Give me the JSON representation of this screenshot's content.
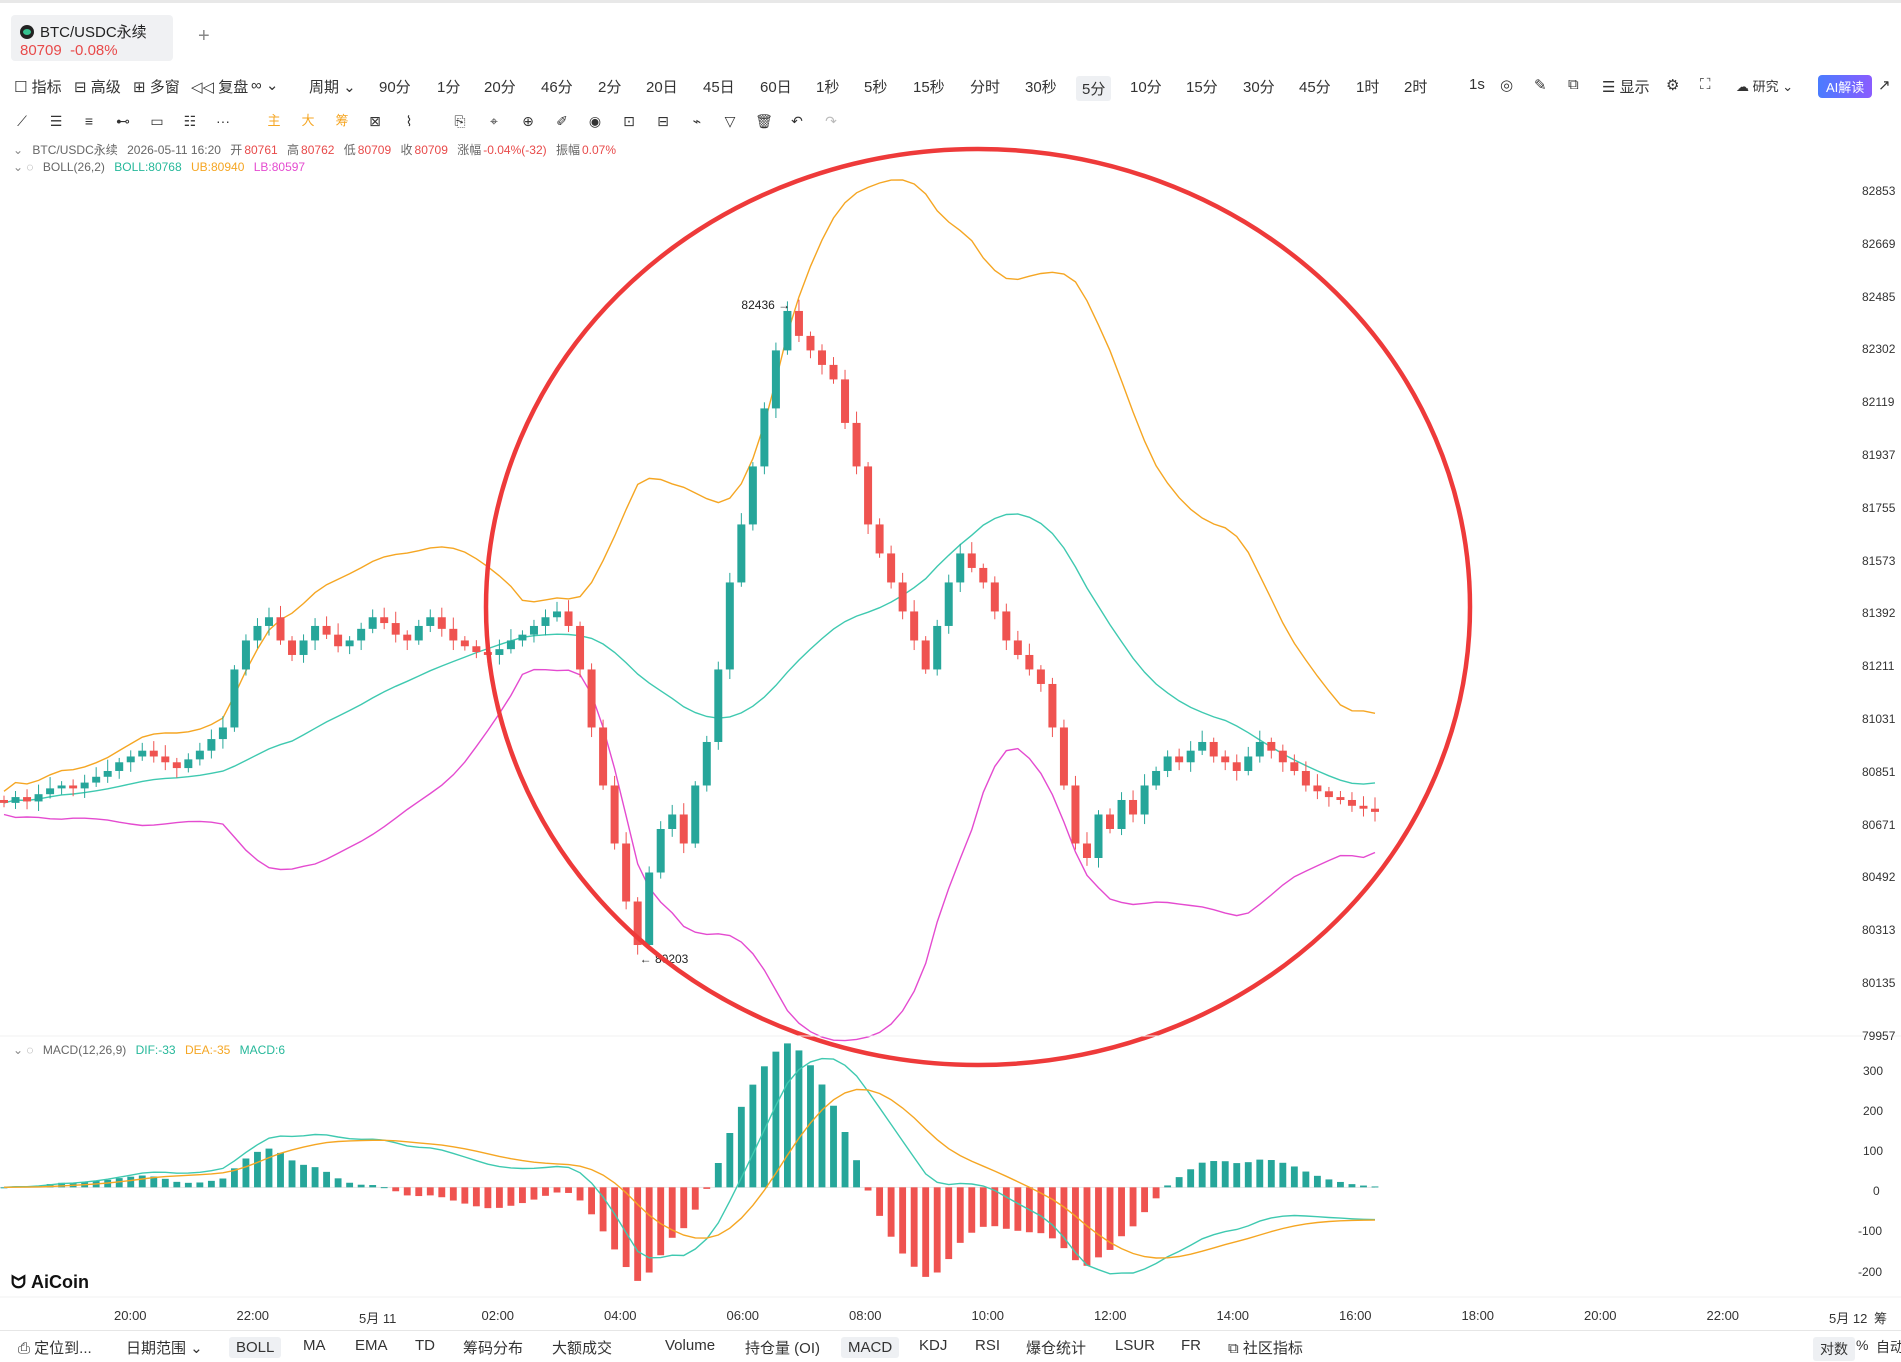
{
  "tab": {
    "symbol": "BTC/USDC永续",
    "price": "80709",
    "change": "-0.08%"
  },
  "toolbar_left": [
    "指标",
    "高级",
    "多窗",
    "复盘",
    "周期"
  ],
  "periods": [
    "90分",
    "1分",
    "20分",
    "46分",
    "2分",
    "20日",
    "45日",
    "60日",
    "1秒",
    "5秒",
    "15秒",
    "分时",
    "30秒",
    "5分",
    "10分",
    "15分",
    "30分",
    "45分",
    "1时",
    "2时",
    "1s"
  ],
  "selected_period": "5分",
  "toolbar_right": {
    "display": "显示",
    "research": "研究",
    "ai": "AI解读"
  },
  "draw_colors": [
    "主",
    "大",
    "筹"
  ],
  "ohlc": {
    "symbol": "BTC/USDC永续",
    "time": "2026-05-11 16:20",
    "open_l": "开",
    "open": "80761",
    "high_l": "高",
    "high": "80762",
    "low_l": "低",
    "low": "80709",
    "close_l": "收",
    "close": "80709",
    "chg_l": "涨幅",
    "chg": "-0.04%(-32)",
    "amp_l": "振幅",
    "amp": "0.07%"
  },
  "boll": {
    "name": "BOLL(26,2)",
    "mid": "BOLL:80768",
    "ub": "UB:80940",
    "lb": "LB:80597"
  },
  "macd": {
    "name": "MACD(12,26,9)",
    "dif": "DIF:-33",
    "dea": "DEA:-35",
    "macd": "MACD:6"
  },
  "annotations": {
    "high": "82436",
    "low": "80203"
  },
  "price_axis": [
    "82853",
    "82669",
    "82485",
    "82302",
    "82119",
    "81937",
    "81755",
    "81573",
    "81392",
    "81211",
    "81031",
    "80851",
    "80671",
    "80492",
    "80313",
    "80135",
    "79957"
  ],
  "macd_axis": [
    "300",
    "200",
    "100",
    "0",
    "-100",
    "-200"
  ],
  "time_axis": [
    "20:00",
    "22:00",
    "5月 11",
    "02:00",
    "04:00",
    "06:00",
    "08:00",
    "10:00",
    "12:00",
    "14:00",
    "16:00",
    "18:00",
    "20:00",
    "22:00",
    "5月 12"
  ],
  "axis_extra": "筹",
  "bottom_left": {
    "locate": "定位到...",
    "range": "日期范围"
  },
  "indicators": [
    "BOLL",
    "MA",
    "EMA",
    "TD",
    "筹码分布",
    "大额成交",
    "Volume",
    "持仓量 (OI)",
    "MACD",
    "KDJ",
    "RSI",
    "爆仓统计",
    "LSUR",
    "FR",
    "社区指标"
  ],
  "active_indicators": [
    "BOLL",
    "MACD"
  ],
  "bottom_right": {
    "log": "对数",
    "pct": "%",
    "auto": "自动"
  },
  "brand": "AiCoin",
  "colors": {
    "up": "#26a69a",
    "down": "#ef5350",
    "mid": "#3fc9b0",
    "ub": "#f5a623",
    "lb": "#e44bd0",
    "circle": "#ee3a3a"
  },
  "chart_data": {
    "type": "candlestick",
    "interval": "5分",
    "closes": [
      80740,
      80760,
      80745,
      80770,
      80790,
      80800,
      80790,
      80810,
      80830,
      80850,
      80880,
      80900,
      80920,
      80900,
      80880,
      80860,
      80890,
      80920,
      80960,
      81000,
      81200,
      81300,
      81350,
      81380,
      81300,
      81250,
      81300,
      81350,
      81320,
      81280,
      81300,
      81340,
      81380,
      81360,
      81320,
      81300,
      81350,
      81380,
      81340,
      81300,
      81280,
      81260,
      81250,
      81270,
      81300,
      81320,
      81350,
      81380,
      81400,
      81350,
      81200,
      81000,
      80800,
      80600,
      80400,
      80250,
      80500,
      80650,
      80700,
      80600,
      80800,
      80950,
      81200,
      81500,
      81700,
      81900,
      82100,
      82300,
      82436,
      82350,
      82300,
      82250,
      82200,
      82050,
      81900,
      81700,
      81600,
      81500,
      81400,
      81300,
      81200,
      81350,
      81500,
      81600,
      81550,
      81500,
      81400,
      81300,
      81250,
      81200,
      81150,
      81000,
      80800,
      80600,
      80550,
      80700,
      80650,
      80750,
      80700,
      80800,
      80850,
      80900,
      80880,
      80920,
      80950,
      80900,
      80880,
      80850,
      80900,
      80950,
      80920,
      80880,
      80850,
      80800,
      80780,
      80760,
      80750,
      80730,
      80720,
      80709
    ],
    "boll_ub_last": 80940,
    "boll_mid_last": 80768,
    "boll_lb_last": 80597,
    "price_range": [
      79957,
      82853
    ],
    "macd_range": [
      -250,
      330
    ]
  }
}
